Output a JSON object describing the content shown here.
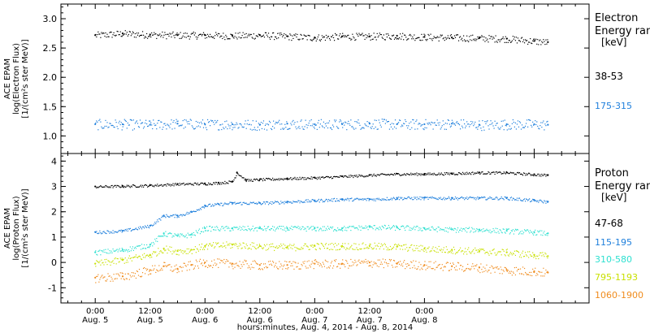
{
  "chart_data": [
    {
      "type": "scatter",
      "panel": "electron",
      "ylabel_lines": [
        "ACE EPAM",
        "log(Electron Flux)",
        "[1/(cm²s ster MeV)]"
      ],
      "legend_title_lines": [
        "Electron",
        "Energy ranges",
        "[keV]"
      ],
      "ylim": [
        0.7,
        3.25
      ],
      "yticks": [
        1.0,
        1.5,
        2.0,
        2.5,
        3.0
      ],
      "ytick_labels": [
        "1.0",
        "1.5",
        "2.0",
        "2.5",
        "3.0"
      ],
      "series": [
        {
          "name": "38-53",
          "color": "#000000",
          "x": [
            0,
            6,
            12,
            18,
            24,
            30,
            36,
            42,
            48,
            54,
            60,
            66,
            72,
            78,
            84,
            90,
            96,
            99
          ],
          "y": [
            2.72,
            2.75,
            2.73,
            2.72,
            2.72,
            2.71,
            2.72,
            2.7,
            2.68,
            2.7,
            2.7,
            2.71,
            2.69,
            2.68,
            2.67,
            2.66,
            2.62,
            2.6
          ],
          "scatter": 0.06
        },
        {
          "name": "175-315",
          "color": "#1e7fdc",
          "x": [
            0,
            6,
            12,
            18,
            24,
            30,
            36,
            42,
            48,
            54,
            60,
            66,
            72,
            78,
            84,
            90,
            96,
            99
          ],
          "y": [
            1.2,
            1.2,
            1.19,
            1.21,
            1.2,
            1.2,
            1.19,
            1.21,
            1.2,
            1.2,
            1.21,
            1.2,
            1.2,
            1.21,
            1.19,
            1.2,
            1.2,
            1.19
          ],
          "scatter": 0.09
        }
      ]
    },
    {
      "type": "scatter",
      "panel": "proton",
      "ylabel_lines": [
        "ACE EPAM",
        "log(Proton Flux)",
        "[1/(cm²s ster MeV)]"
      ],
      "legend_title_lines": [
        "Proton",
        "Energy ranges",
        "[keV]"
      ],
      "ylim": [
        -1.6,
        4.3
      ],
      "yticks": [
        -1,
        0,
        1,
        2,
        3,
        4
      ],
      "ytick_labels": [
        "-1",
        "0",
        "1",
        "2",
        "3",
        "4"
      ],
      "series": [
        {
          "name": "47-68",
          "color": "#000000",
          "x": [
            0,
            6,
            12,
            18,
            24,
            27,
            30,
            31,
            33,
            36,
            42,
            48,
            54,
            60,
            66,
            72,
            78,
            84,
            90,
            96,
            99
          ],
          "y": [
            3.0,
            3.02,
            3.05,
            3.1,
            3.12,
            3.15,
            3.2,
            3.55,
            3.25,
            3.28,
            3.32,
            3.35,
            3.4,
            3.45,
            3.5,
            3.5,
            3.52,
            3.55,
            3.55,
            3.48,
            3.45
          ],
          "scatter": 0.05
        },
        {
          "name": "115-195",
          "color": "#1e7fdc",
          "x": [
            0,
            6,
            12,
            15,
            18,
            21,
            24,
            27,
            30,
            36,
            42,
            48,
            54,
            60,
            66,
            72,
            78,
            84,
            90,
            96,
            99
          ],
          "y": [
            1.2,
            1.25,
            1.45,
            1.85,
            1.85,
            2.0,
            2.25,
            2.3,
            2.35,
            2.35,
            2.4,
            2.45,
            2.5,
            2.5,
            2.55,
            2.55,
            2.55,
            2.55,
            2.55,
            2.45,
            2.4
          ],
          "scatter": 0.06
        },
        {
          "name": "310-580",
          "color": "#2ee0d0",
          "x": [
            0,
            6,
            12,
            15,
            18,
            21,
            24,
            30,
            36,
            42,
            48,
            54,
            60,
            66,
            72,
            78,
            84,
            90,
            96,
            99
          ],
          "y": [
            0.4,
            0.5,
            0.7,
            1.15,
            1.05,
            1.1,
            1.35,
            1.35,
            1.35,
            1.35,
            1.35,
            1.35,
            1.4,
            1.38,
            1.35,
            1.3,
            1.3,
            1.25,
            1.2,
            1.15
          ],
          "scatter": 0.1
        },
        {
          "name": "795-1193",
          "color": "#c8e000",
          "x": [
            0,
            6,
            12,
            15,
            18,
            21,
            24,
            30,
            36,
            42,
            48,
            54,
            60,
            66,
            72,
            78,
            84,
            90,
            96,
            99
          ],
          "y": [
            -0.05,
            0.1,
            0.3,
            0.55,
            0.45,
            0.5,
            0.65,
            0.7,
            0.65,
            0.6,
            0.65,
            0.65,
            0.65,
            0.62,
            0.55,
            0.5,
            0.45,
            0.4,
            0.3,
            0.25
          ],
          "scatter": 0.14
        },
        {
          "name": "1060-1900",
          "color": "#f08c1e",
          "x": [
            0,
            6,
            12,
            15,
            18,
            21,
            24,
            30,
            36,
            42,
            48,
            54,
            60,
            66,
            72,
            78,
            84,
            90,
            96,
            99
          ],
          "y": [
            -0.6,
            -0.55,
            -0.3,
            -0.15,
            -0.25,
            -0.1,
            0.0,
            -0.05,
            -0.1,
            -0.1,
            -0.05,
            -0.05,
            0.0,
            -0.05,
            -0.1,
            -0.15,
            -0.2,
            -0.3,
            -0.35,
            -0.4
          ],
          "scatter": 0.18
        }
      ]
    }
  ],
  "time_axis": {
    "xlim_hours": [
      -7.5,
      108
    ],
    "ticks": [
      {
        "hour": 0,
        "time": "0:00",
        "day": "Aug. 5"
      },
      {
        "hour": 12,
        "time": "12:00",
        "day": "Aug. 5"
      },
      {
        "hour": 24,
        "time": "0:00",
        "day": "Aug. 6"
      },
      {
        "hour": 36,
        "time": "12:00",
        "day": "Aug. 6"
      },
      {
        "hour": 48,
        "time": "0:00",
        "day": "Aug. 7"
      },
      {
        "hour": 60,
        "time": "12:00",
        "day": "Aug. 7"
      },
      {
        "hour": 72,
        "time": "0:00",
        "day": "Aug. 8"
      }
    ],
    "minor_step_hours": 3,
    "xlabel": "hours:minutes, Aug.  4, 2014 - Aug.  8, 2014"
  },
  "colors": {
    "frame": "#000000",
    "background": "#ffffff"
  }
}
